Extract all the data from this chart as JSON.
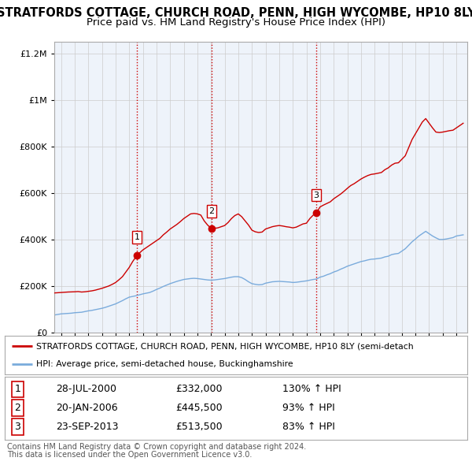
{
  "title": "STRATFORDS COTTAGE, CHURCH ROAD, PENN, HIGH WYCOMBE, HP10 8LY",
  "subtitle": "Price paid vs. HM Land Registry's House Price Index (HPI)",
  "title_fontsize": 10.5,
  "subtitle_fontsize": 9.5,
  "sales": [
    {
      "num": 1,
      "date_label": "28-JUL-2000",
      "x": 2000.57,
      "price": 332000,
      "pct": "130%",
      "dir": "↑"
    },
    {
      "num": 2,
      "date_label": "20-JAN-2006",
      "x": 2006.05,
      "price": 445500,
      "pct": "93%",
      "dir": "↑"
    },
    {
      "num": 3,
      "date_label": "23-SEP-2013",
      "x": 2013.72,
      "price": 513500,
      "pct": "83%",
      "dir": "↑"
    }
  ],
  "sale_vline_color": "#cc0000",
  "red_line_color": "#cc0000",
  "blue_line_color": "#7aabdc",
  "red_line_label": "STRATFORDS COTTAGE, CHURCH ROAD, PENN, HIGH WYCOMBE, HP10 8LY (semi-detach",
  "blue_line_label": "HPI: Average price, semi-detached house, Buckinghamshire",
  "ylim": [
    0,
    1250000
  ],
  "yticks": [
    0,
    200000,
    400000,
    600000,
    800000,
    1000000,
    1200000
  ],
  "ytick_labels": [
    "£0",
    "£200K",
    "£400K",
    "£600K",
    "£800K",
    "£1M",
    "£1.2M"
  ],
  "xlim_start": 1994.5,
  "xlim_end": 2024.8,
  "xticks": [
    1995,
    1996,
    1997,
    1998,
    1999,
    2000,
    2001,
    2002,
    2003,
    2004,
    2005,
    2006,
    2007,
    2008,
    2009,
    2010,
    2011,
    2012,
    2013,
    2014,
    2015,
    2016,
    2017,
    2018,
    2019,
    2020,
    2021,
    2022,
    2023,
    2024
  ],
  "footer1": "Contains HM Land Registry data © Crown copyright and database right 2024.",
  "footer2": "This data is licensed under the Open Government Licence v3.0.",
  "red_x": [
    1994.5,
    1995.0,
    1995.25,
    1995.5,
    1995.75,
    1996.0,
    1996.25,
    1996.5,
    1996.75,
    1997.0,
    1997.25,
    1997.5,
    1997.75,
    1998.0,
    1998.25,
    1998.5,
    1998.75,
    1999.0,
    1999.25,
    1999.5,
    1999.75,
    2000.0,
    2000.25,
    2000.57,
    2000.75,
    2001.0,
    2001.25,
    2001.5,
    2001.75,
    2002.0,
    2002.25,
    2002.5,
    2002.75,
    2003.0,
    2003.25,
    2003.5,
    2003.75,
    2004.0,
    2004.25,
    2004.5,
    2004.75,
    2005.0,
    2005.25,
    2005.5,
    2005.75,
    2006.05,
    2006.25,
    2006.5,
    2006.75,
    2007.0,
    2007.25,
    2007.5,
    2007.75,
    2008.0,
    2008.25,
    2008.5,
    2008.75,
    2009.0,
    2009.25,
    2009.5,
    2009.75,
    2010.0,
    2010.25,
    2010.5,
    2010.75,
    2011.0,
    2011.25,
    2011.5,
    2011.75,
    2012.0,
    2012.25,
    2012.5,
    2012.75,
    2013.0,
    2013.25,
    2013.5,
    2013.72,
    2014.0,
    2014.25,
    2014.5,
    2014.75,
    2015.0,
    2015.25,
    2015.5,
    2015.75,
    2016.0,
    2016.25,
    2016.5,
    2016.75,
    2017.0,
    2017.25,
    2017.5,
    2017.75,
    2018.0,
    2018.25,
    2018.5,
    2018.75,
    2019.0,
    2019.25,
    2019.5,
    2019.75,
    2020.0,
    2020.25,
    2020.5,
    2020.75,
    2021.0,
    2021.25,
    2021.5,
    2021.75,
    2022.0,
    2022.25,
    2022.5,
    2022.75,
    2023.0,
    2023.25,
    2023.5,
    2023.75,
    2024.0,
    2024.5
  ],
  "red_y": [
    170000,
    172000,
    173000,
    174000,
    174500,
    175000,
    176000,
    174000,
    175000,
    177000,
    179000,
    182000,
    186000,
    190000,
    195000,
    200000,
    207000,
    215000,
    227000,
    240000,
    260000,
    280000,
    305000,
    332000,
    342000,
    355000,
    365000,
    375000,
    385000,
    395000,
    405000,
    420000,
    432000,
    445000,
    455000,
    465000,
    477000,
    490000,
    500000,
    510000,
    512000,
    510000,
    505000,
    480000,
    462000,
    445500,
    448000,
    450000,
    455000,
    460000,
    473000,
    490000,
    503000,
    510000,
    498000,
    480000,
    462000,
    440000,
    433000,
    430000,
    432000,
    445000,
    450000,
    455000,
    458000,
    460000,
    458000,
    455000,
    453000,
    450000,
    453000,
    460000,
    467000,
    470000,
    490000,
    505000,
    513500,
    540000,
    548000,
    555000,
    562000,
    575000,
    585000,
    595000,
    607000,
    620000,
    632000,
    640000,
    650000,
    660000,
    668000,
    675000,
    680000,
    682000,
    685000,
    688000,
    700000,
    708000,
    720000,
    728000,
    730000,
    745000,
    760000,
    795000,
    830000,
    855000,
    880000,
    905000,
    920000,
    900000,
    880000,
    862000,
    860000,
    862000,
    865000,
    868000,
    870000,
    880000,
    900000
  ],
  "blue_x": [
    1994.5,
    1995.0,
    1995.25,
    1995.5,
    1995.75,
    1996.0,
    1996.25,
    1996.5,
    1996.75,
    1997.0,
    1997.25,
    1997.5,
    1997.75,
    1998.0,
    1998.25,
    1998.5,
    1998.75,
    1999.0,
    1999.25,
    1999.5,
    1999.75,
    2000.0,
    2000.25,
    2000.5,
    2000.75,
    2001.0,
    2001.25,
    2001.5,
    2001.75,
    2002.0,
    2002.25,
    2002.5,
    2002.75,
    2003.0,
    2003.25,
    2003.5,
    2003.75,
    2004.0,
    2004.25,
    2004.5,
    2004.75,
    2005.0,
    2005.25,
    2005.5,
    2005.75,
    2006.0,
    2006.25,
    2006.5,
    2006.75,
    2007.0,
    2007.25,
    2007.5,
    2007.75,
    2008.0,
    2008.25,
    2008.5,
    2008.75,
    2009.0,
    2009.25,
    2009.5,
    2009.75,
    2010.0,
    2010.25,
    2010.5,
    2010.75,
    2011.0,
    2011.25,
    2011.5,
    2011.75,
    2012.0,
    2012.25,
    2012.5,
    2012.75,
    2013.0,
    2013.25,
    2013.5,
    2013.75,
    2014.0,
    2014.25,
    2014.5,
    2014.75,
    2015.0,
    2015.25,
    2015.5,
    2015.75,
    2016.0,
    2016.25,
    2016.5,
    2016.75,
    2017.0,
    2017.25,
    2017.5,
    2017.75,
    2018.0,
    2018.25,
    2018.5,
    2018.75,
    2019.0,
    2019.25,
    2019.5,
    2019.75,
    2020.0,
    2020.25,
    2020.5,
    2020.75,
    2021.0,
    2021.25,
    2021.5,
    2021.75,
    2022.0,
    2022.25,
    2022.5,
    2022.75,
    2023.0,
    2023.25,
    2023.5,
    2023.75,
    2024.0,
    2024.5
  ],
  "blue_y": [
    75000,
    80000,
    81000,
    82000,
    83000,
    85000,
    86000,
    87000,
    90000,
    93000,
    95000,
    98000,
    101000,
    104000,
    108000,
    113000,
    118000,
    123000,
    130000,
    137000,
    145000,
    152000,
    155000,
    158000,
    162000,
    166000,
    169000,
    172000,
    178000,
    185000,
    191000,
    198000,
    204000,
    210000,
    215000,
    220000,
    224000,
    228000,
    230000,
    232000,
    233000,
    232000,
    230000,
    228000,
    226000,
    225000,
    226000,
    228000,
    230000,
    232000,
    235000,
    238000,
    240000,
    240000,
    236000,
    228000,
    218000,
    210000,
    207000,
    205000,
    206000,
    212000,
    215000,
    218000,
    219000,
    220000,
    219000,
    218000,
    217000,
    215000,
    216000,
    218000,
    220000,
    222000,
    225000,
    228000,
    230000,
    238000,
    242000,
    248000,
    253000,
    260000,
    265000,
    272000,
    278000,
    285000,
    290000,
    295000,
    300000,
    305000,
    308000,
    312000,
    315000,
    316000,
    318000,
    320000,
    325000,
    328000,
    335000,
    338000,
    340000,
    350000,
    360000,
    375000,
    390000,
    402000,
    415000,
    425000,
    435000,
    425000,
    415000,
    407000,
    400000,
    400000,
    402000,
    405000,
    408000,
    415000,
    420000
  ],
  "background_color": "#ffffff",
  "grid_color": "#cccccc",
  "plot_bg": "#eef3fa"
}
